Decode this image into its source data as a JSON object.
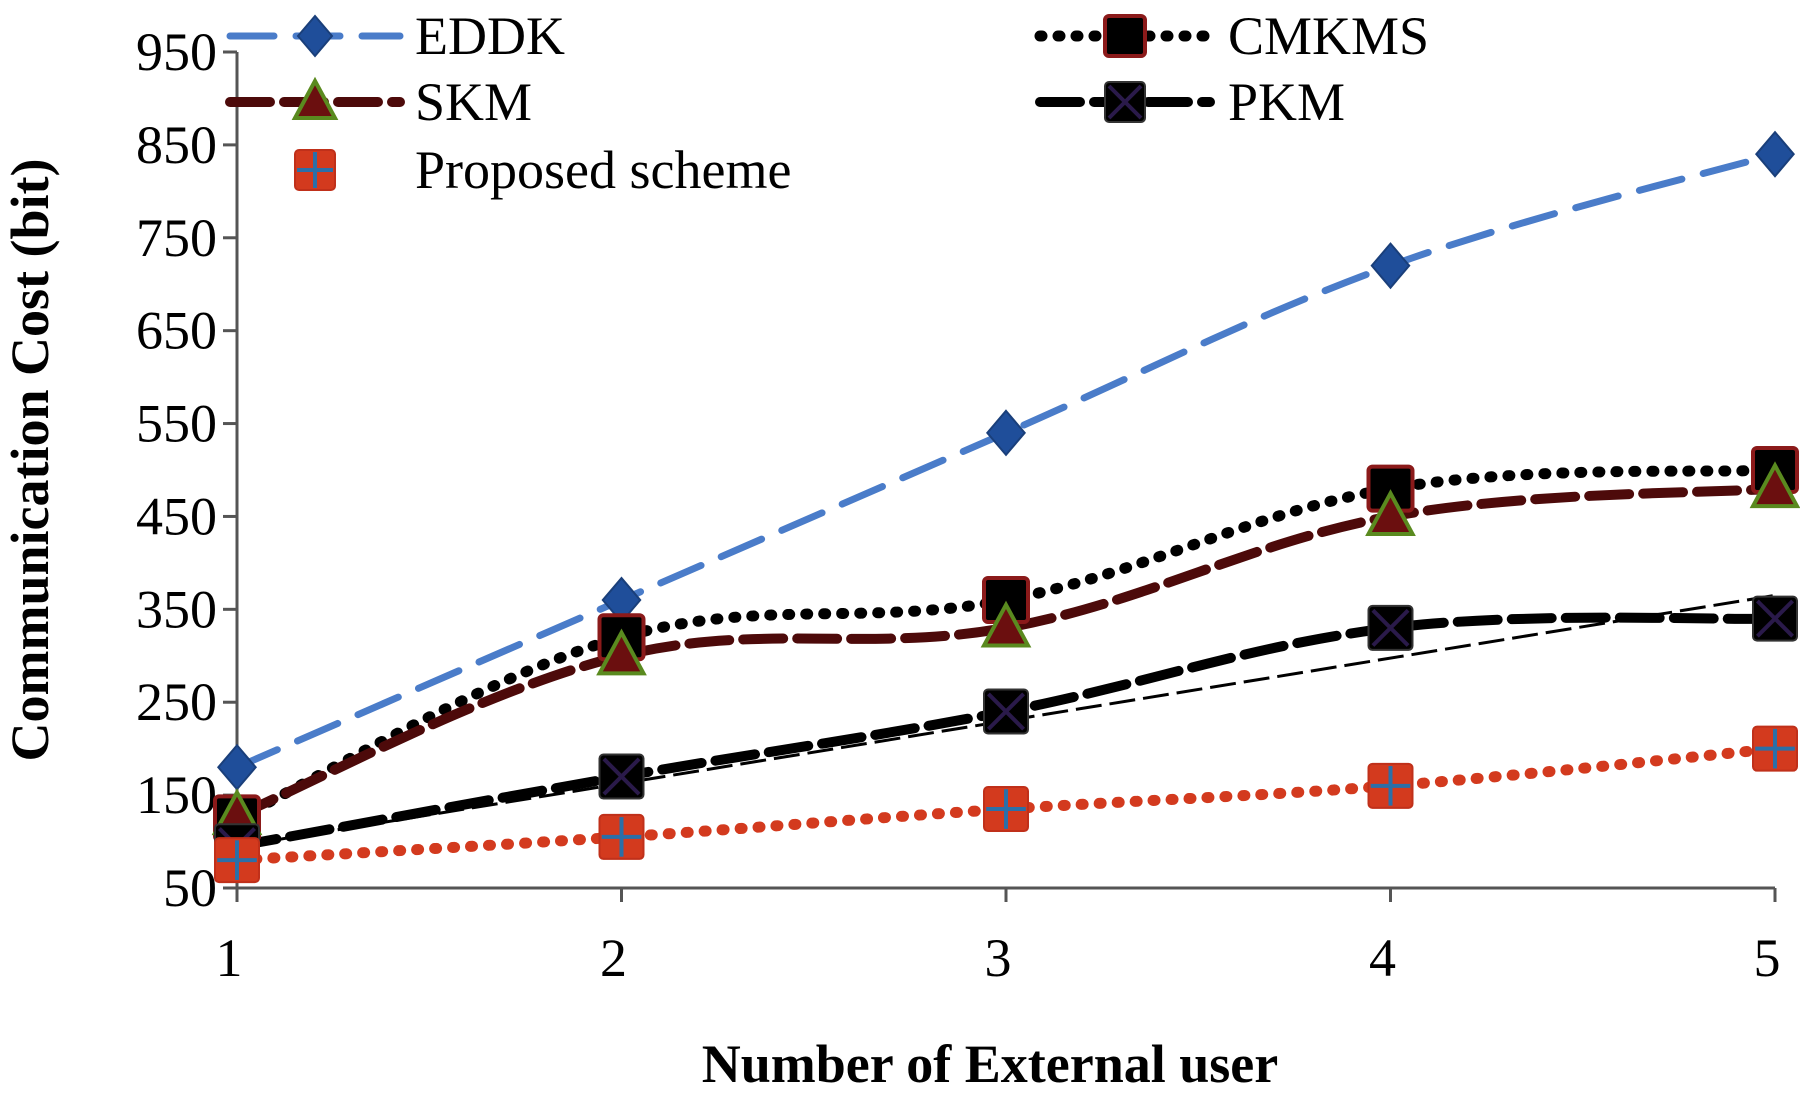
{
  "chart_data": {
    "type": "line",
    "title": "",
    "xlabel": "Number of External user",
    "ylabel": "Communication Cost (bit)",
    "x": [
      1,
      2,
      3,
      4,
      5
    ],
    "xlim": [
      1,
      5
    ],
    "ylim": [
      50,
      950
    ],
    "yticks": [
      50,
      150,
      250,
      350,
      450,
      550,
      650,
      750,
      850,
      950
    ],
    "xticks": [
      1,
      2,
      3,
      4,
      5
    ],
    "grid": false,
    "legend_position": "top",
    "series": [
      {
        "name": "EDDK",
        "values": [
          180,
          360,
          540,
          720,
          840
        ],
        "color": "#4A7CC9",
        "marker_color": "#1F4E9A",
        "marker": "diamond",
        "dash": "long-dash"
      },
      {
        "name": "CMKMS",
        "values": [
          125,
          320,
          360,
          480,
          500
        ],
        "color": "#000000",
        "marker_color": "#000000",
        "marker_edge": "#8B1A1A",
        "marker": "square",
        "dash": "dot"
      },
      {
        "name": "SKM",
        "values": [
          128,
          300,
          330,
          450,
          480
        ],
        "color": "#4D0A0A",
        "marker_color": "#6B0F0F",
        "marker_edge": "#5A8A1F",
        "marker": "triangle",
        "dash": "dash"
      },
      {
        "name": "PKM",
        "values": [
          95,
          170,
          240,
          330,
          340
        ],
        "color": "#000000",
        "marker_color": "#000000",
        "marker_edge": "#2A1A4A",
        "marker": "x-square",
        "dash": "dash"
      },
      {
        "name": "Proposed scheme",
        "values": [
          80,
          105,
          135,
          160,
          200
        ],
        "color": "#D33A1E",
        "marker_color": "#D33A1E",
        "marker_edge": "#2B6FA8",
        "marker": "plus-square",
        "dash": "dot"
      }
    ],
    "trendline": {
      "series": "PKM",
      "start": [
        1,
        95
      ],
      "end": [
        5,
        365
      ],
      "color": "#000000"
    }
  }
}
